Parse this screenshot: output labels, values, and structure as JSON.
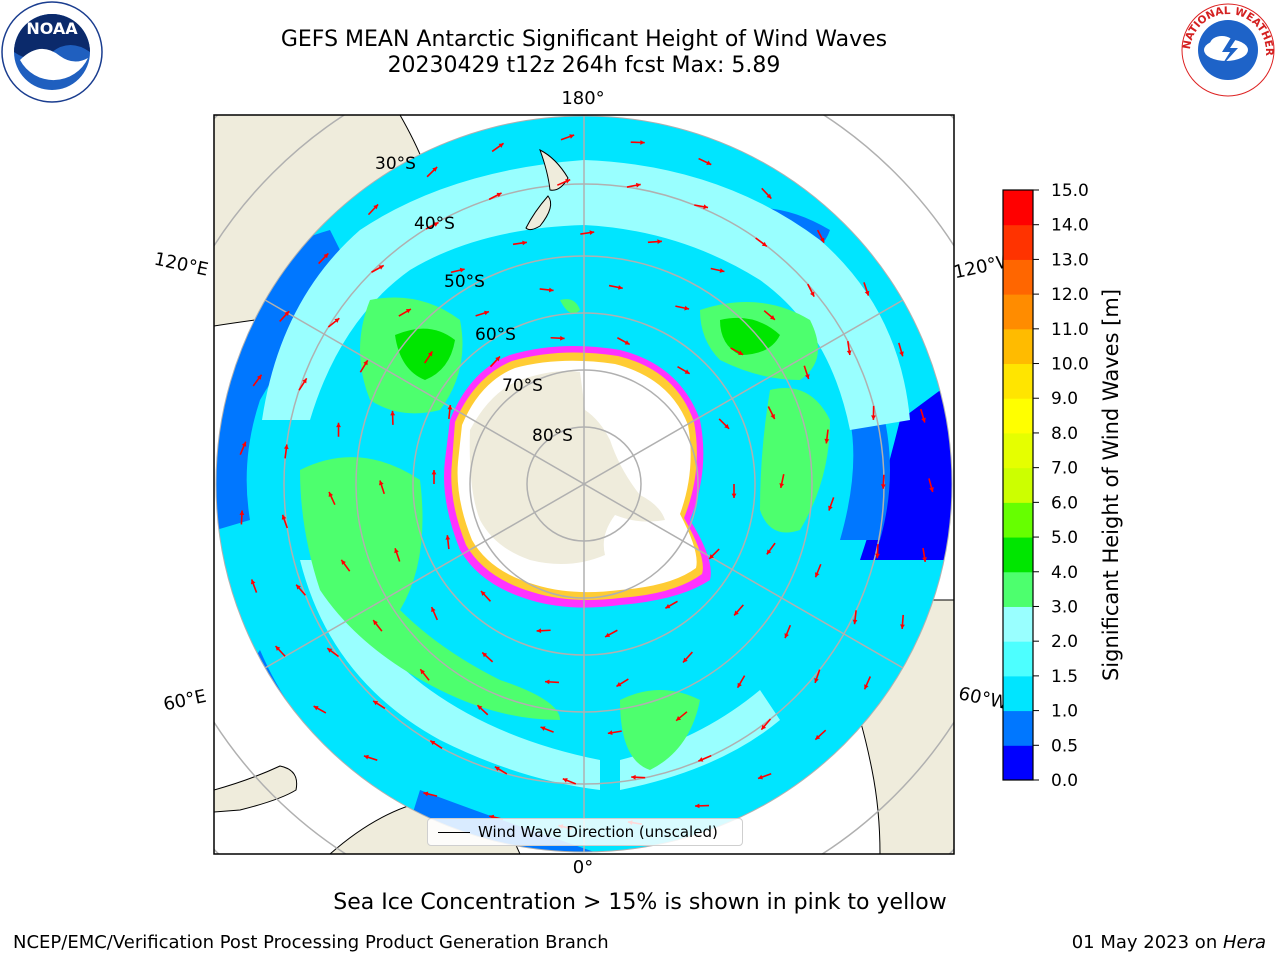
{
  "title": {
    "line1": "GEFS MEAN Antarctic Significant Height of Wind Waves",
    "line2": "20230429 t12z 264h fcst   Max: 5.89"
  },
  "map": {
    "meridian_labels": {
      "top": "180°",
      "bottom": "0°",
      "upper_left": "120°E",
      "upper_right": "120°W",
      "lower_left": "60°E",
      "lower_right": "60°W"
    },
    "parallel_labels": [
      "30°S",
      "40°S",
      "50°S",
      "60°S",
      "70°S",
      "80°S"
    ],
    "legend_label": "Wind Wave Direction (unscaled)",
    "colors": {
      "land": "#efecdc",
      "ice_pink": "#ff33ff",
      "ice_yellow": "#ffcc33",
      "arrow": "#ff0000",
      "grid": "#b0b0b0"
    }
  },
  "colorbar": {
    "label": "Significant Height of Wind Waves [m]",
    "ticks": [
      "0.0",
      "0.5",
      "1.0",
      "1.5",
      "2.0",
      "3.0",
      "4.0",
      "5.0",
      "6.0",
      "7.0",
      "8.0",
      "9.0",
      "10.0",
      "11.0",
      "12.0",
      "13.0",
      "14.0",
      "15.0"
    ],
    "colors": [
      "#0000ff",
      "#0077ff",
      "#00e5ff",
      "#4dffff",
      "#99ffff",
      "#4dff6e",
      "#00e600",
      "#66ff00",
      "#ccff00",
      "#e5ff00",
      "#ffff00",
      "#ffe500",
      "#ffbb00",
      "#ff8c00",
      "#ff6600",
      "#ff3300",
      "#ff0000"
    ]
  },
  "footer": {
    "ice_note": "Sea Ice Concentration > 15% is shown in pink to yellow",
    "left": "NCEP/EMC/Verification Post Processing Product Generation Branch",
    "right_prefix": "01 May 2023 on ",
    "right_machine": "Hera"
  },
  "logos": {
    "noaa": "NOAA",
    "nws": "NATIONAL WEATHER SERVICE"
  }
}
